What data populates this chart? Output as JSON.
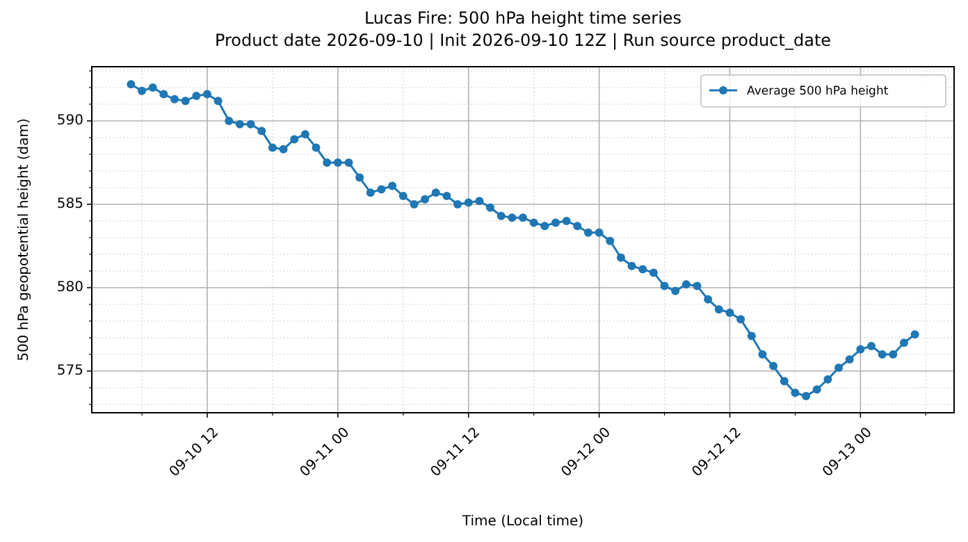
{
  "chart_data": {
    "type": "line",
    "title": "Lucas Fire: 500 hPa height time series",
    "subtitle": "Product date 2026-09-10 | Init 2026-09-10 12Z | Run source product_date",
    "xlabel": "Time (Local time)",
    "ylabel": "500 hPa geopotential height (dam)",
    "x": [
      "2026-09-10T05:00",
      "2026-09-10T06:00",
      "2026-09-10T07:00",
      "2026-09-10T08:00",
      "2026-09-10T09:00",
      "2026-09-10T10:00",
      "2026-09-10T11:00",
      "2026-09-10T12:00",
      "2026-09-10T13:00",
      "2026-09-10T14:00",
      "2026-09-10T15:00",
      "2026-09-10T16:00",
      "2026-09-10T17:00",
      "2026-09-10T18:00",
      "2026-09-10T19:00",
      "2026-09-10T20:00",
      "2026-09-10T21:00",
      "2026-09-10T22:00",
      "2026-09-10T23:00",
      "2026-09-11T00:00",
      "2026-09-11T01:00",
      "2026-09-11T02:00",
      "2026-09-11T03:00",
      "2026-09-11T04:00",
      "2026-09-11T05:00",
      "2026-09-11T06:00",
      "2026-09-11T07:00",
      "2026-09-11T08:00",
      "2026-09-11T09:00",
      "2026-09-11T10:00",
      "2026-09-11T11:00",
      "2026-09-11T12:00",
      "2026-09-11T13:00",
      "2026-09-11T14:00",
      "2026-09-11T15:00",
      "2026-09-11T16:00",
      "2026-09-11T17:00",
      "2026-09-11T18:00",
      "2026-09-11T19:00",
      "2026-09-11T20:00",
      "2026-09-11T21:00",
      "2026-09-11T22:00",
      "2026-09-11T23:00",
      "2026-09-12T00:00",
      "2026-09-12T01:00",
      "2026-09-12T02:00",
      "2026-09-12T03:00",
      "2026-09-12T04:00",
      "2026-09-12T05:00",
      "2026-09-12T06:00",
      "2026-09-12T07:00",
      "2026-09-12T08:00",
      "2026-09-12T09:00",
      "2026-09-12T10:00",
      "2026-09-12T11:00",
      "2026-09-12T12:00",
      "2026-09-12T13:00",
      "2026-09-12T14:00",
      "2026-09-12T15:00",
      "2026-09-12T16:00",
      "2026-09-12T17:00",
      "2026-09-12T18:00",
      "2026-09-12T19:00",
      "2026-09-12T20:00",
      "2026-09-12T21:00",
      "2026-09-12T22:00",
      "2026-09-12T23:00",
      "2026-09-13T00:00",
      "2026-09-13T01:00",
      "2026-09-13T02:00",
      "2026-09-13T03:00",
      "2026-09-13T04:00",
      "2026-09-13T05:00"
    ],
    "series": [
      {
        "name": "Average 500 hPa height",
        "color": "#1f77b4",
        "values": [
          592.2,
          591.8,
          592.0,
          591.6,
          591.3,
          591.2,
          591.5,
          591.6,
          591.2,
          590.0,
          589.8,
          589.8,
          589.4,
          588.4,
          588.3,
          588.9,
          589.2,
          588.4,
          587.5,
          587.5,
          587.5,
          586.6,
          585.7,
          585.9,
          586.1,
          585.5,
          585.0,
          585.3,
          585.7,
          585.5,
          585.0,
          585.1,
          585.2,
          584.8,
          584.3,
          584.2,
          584.2,
          583.9,
          583.7,
          583.9,
          584.0,
          583.7,
          583.3,
          583.3,
          582.8,
          581.8,
          581.3,
          581.1,
          580.9,
          580.1,
          579.8,
          580.2,
          580.1,
          579.3,
          578.7,
          578.5,
          578.1,
          577.1,
          576.0,
          575.3,
          574.4,
          573.7,
          573.5,
          573.9,
          574.5,
          575.2,
          575.7,
          576.3,
          576.5,
          576.0,
          576.0,
          576.7,
          577.2
        ]
      }
    ],
    "xlim": [
      "2026-09-10T01:24",
      "2026-09-13T08:36"
    ],
    "xticks": [
      {
        "value": "2026-09-10T06:00",
        "label": null
      },
      {
        "value": "2026-09-10T12:00",
        "label": "09-10 12"
      },
      {
        "value": "2026-09-10T18:00",
        "label": null
      },
      {
        "value": "2026-09-11T00:00",
        "label": "09-11 00"
      },
      {
        "value": "2026-09-11T06:00",
        "label": null
      },
      {
        "value": "2026-09-11T12:00",
        "label": "09-11 12"
      },
      {
        "value": "2026-09-11T18:00",
        "label": null
      },
      {
        "value": "2026-09-12T00:00",
        "label": "09-12 00"
      },
      {
        "value": "2026-09-12T06:00",
        "label": null
      },
      {
        "value": "2026-09-12T12:00",
        "label": "09-12 12"
      },
      {
        "value": "2026-09-12T18:00",
        "label": null
      },
      {
        "value": "2026-09-13T00:00",
        "label": "09-13 00"
      },
      {
        "value": "2026-09-13T06:00",
        "label": null
      }
    ],
    "ylim": [
      572.5,
      593.25
    ],
    "yticks": [
      {
        "value": 573,
        "label": null
      },
      {
        "value": 574,
        "label": null
      },
      575,
      {
        "value": 576,
        "label": null
      },
      {
        "value": 577,
        "label": null
      },
      {
        "value": 578,
        "label": null
      },
      {
        "value": 579,
        "label": null
      },
      580,
      {
        "value": 581,
        "label": null
      },
      {
        "value": 582,
        "label": null
      },
      {
        "value": 583,
        "label": null
      },
      {
        "value": 584,
        "label": null
      },
      585,
      {
        "value": 586,
        "label": null
      },
      {
        "value": 587,
        "label": null
      },
      {
        "value": 588,
        "label": null
      },
      {
        "value": 589,
        "label": null
      },
      590,
      {
        "value": 591,
        "label": null
      },
      {
        "value": 592,
        "label": null
      },
      {
        "value": 593,
        "label": null
      }
    ],
    "grid": true,
    "legend": "top right",
    "marker": "circle",
    "line_style": "solid"
  }
}
